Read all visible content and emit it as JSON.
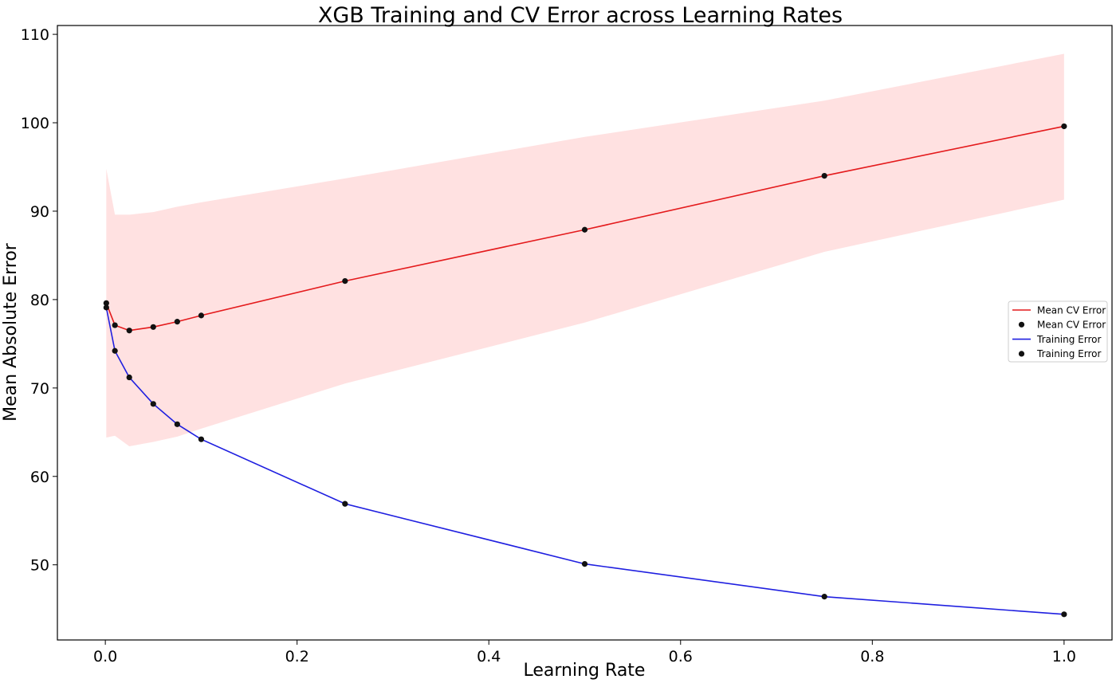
{
  "chart_data": {
    "type": "line",
    "title": "XGB Training and CV Error across Learning Rates",
    "xlabel": "Learning Rate",
    "ylabel": "Mean Absolute Error",
    "xlim": [
      -0.05,
      1.05
    ],
    "ylim": [
      41.5,
      111
    ],
    "xticks": [
      0.0,
      0.2,
      0.4,
      0.6,
      0.8,
      1.0
    ],
    "xtick_labels": [
      "0.0",
      "0.2",
      "0.4",
      "0.6",
      "0.8",
      "1.0"
    ],
    "yticks": [
      50,
      60,
      70,
      80,
      90,
      100,
      110
    ],
    "ytick_labels": [
      "50",
      "60",
      "70",
      "80",
      "90",
      "100",
      "110"
    ],
    "grid": false,
    "legend_position": "center-right",
    "x": [
      0.001,
      0.01,
      0.025,
      0.05,
      0.075,
      0.1,
      0.25,
      0.5,
      0.75,
      1.0
    ],
    "series": [
      {
        "name": "Mean CV Error",
        "color": "#e41a1c",
        "marker_color": "#111111",
        "values": [
          79.6,
          77.1,
          76.5,
          76.9,
          77.5,
          78.2,
          82.1,
          87.9,
          94.0,
          99.6
        ],
        "band_upper": [
          94.8,
          89.6,
          89.6,
          89.9,
          90.5,
          91.0,
          93.7,
          98.4,
          102.5,
          107.8
        ],
        "band_lower": [
          64.4,
          64.6,
          63.4,
          63.9,
          64.5,
          65.4,
          70.5,
          77.4,
          85.4,
          91.3
        ],
        "band_color": "#ffe1e1"
      },
      {
        "name": "Training Error",
        "color": "#1f1fe0",
        "marker_color": "#111111",
        "values": [
          79.1,
          74.2,
          71.2,
          68.2,
          65.9,
          64.2,
          56.9,
          50.1,
          46.4,
          44.4
        ]
      }
    ],
    "legend": [
      {
        "label": "Mean CV Error",
        "kind": "line",
        "color": "#e41a1c"
      },
      {
        "label": "Mean CV Error",
        "kind": "marker",
        "color": "#111111"
      },
      {
        "label": "Training Error",
        "kind": "line",
        "color": "#1f1fe0"
      },
      {
        "label": "Training Error",
        "kind": "marker",
        "color": "#111111"
      }
    ]
  }
}
